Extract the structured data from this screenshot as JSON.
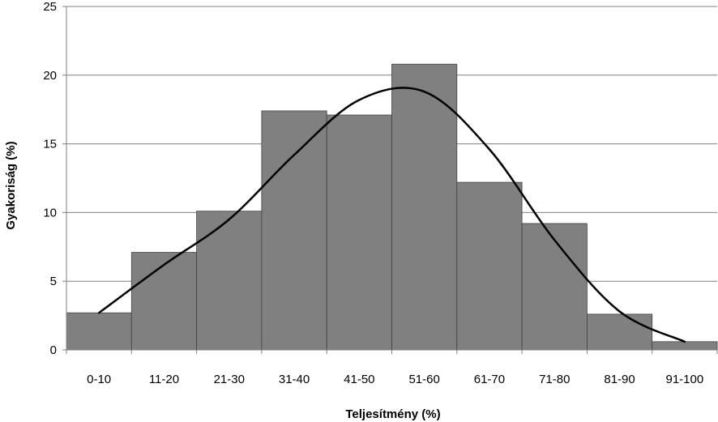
{
  "chart_data": {
    "type": "bar",
    "title": "",
    "xlabel": "Teljesítmény (%)",
    "ylabel": "Gyakoriság (%)",
    "ylim": [
      0,
      25
    ],
    "yticks": [
      0,
      5,
      10,
      15,
      20,
      25
    ],
    "grid": true,
    "legend": "none",
    "categories": [
      "0-10",
      "11-20",
      "21-30",
      "31-40",
      "41-50",
      "51-60",
      "61-70",
      "71-80",
      "81-90",
      "91-100"
    ],
    "values": [
      2.7,
      7.1,
      10.1,
      17.4,
      17.1,
      20.8,
      12.2,
      9.2,
      2.6,
      0.6
    ],
    "curve": {
      "type": "line",
      "x_midpoints": [
        5,
        15,
        25,
        35,
        45,
        55,
        65,
        75,
        85,
        95
      ],
      "values": [
        2.7,
        6.2,
        9.5,
        14.2,
        18.2,
        18.8,
        14.6,
        8.0,
        2.8,
        0.6
      ]
    },
    "colors": {
      "bar": "#808080",
      "bar_stroke": "#404040",
      "curve": "#000000",
      "grid": "#808080"
    }
  }
}
